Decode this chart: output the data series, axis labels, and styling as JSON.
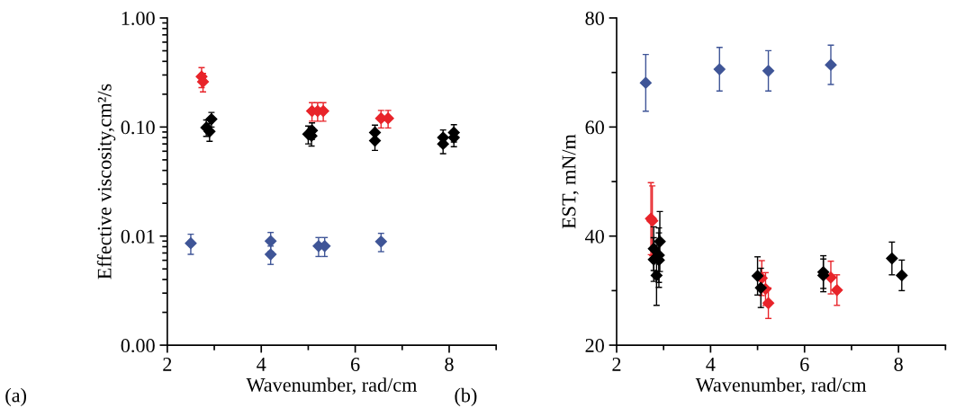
{
  "chart_data": [
    {
      "type": "scatter",
      "xlabel": "Wavenumber, rad/cm",
      "ylabel": "Effective viscosity,cm²/s",
      "annotations": [
        "(a)"
      ],
      "log": "y",
      "xlim": [
        2,
        9
      ],
      "xticks": [
        2,
        4,
        6,
        8
      ],
      "ylim": [
        0.001,
        1
      ],
      "yticks": [
        {
          "value": 0.001,
          "label": "0.00"
        },
        {
          "value": 0.01,
          "label": "0.01"
        },
        {
          "value": 0.1,
          "label": "0.10"
        },
        {
          "value": 1,
          "label": "1.00"
        }
      ],
      "marker": "diamond",
      "series": [
        {
          "color": "#3f5597",
          "x": [
            2.5,
            4.2,
            4.2,
            5.22,
            5.35,
            6.55
          ],
          "values": [
            0.0086,
            0.009,
            0.0068,
            0.0081,
            0.0081,
            0.0089
          ],
          "errors": [
            0.0018,
            0.0018,
            0.0013,
            0.0016,
            0.0016,
            0.0017
          ]
        },
        {
          "color": "#e8242a",
          "x": [
            2.73,
            2.76,
            5.08,
            5.2,
            5.32,
            6.55,
            6.7
          ],
          "values": [
            0.29,
            0.26,
            0.14,
            0.14,
            0.14,
            0.12,
            0.12
          ],
          "errors": [
            0.06,
            0.05,
            0.027,
            0.027,
            0.027,
            0.022,
            0.022
          ]
        },
        {
          "color": "#000000",
          "x": [
            2.83,
            2.9,
            2.94,
            5.0,
            5.07,
            5.08,
            6.42,
            6.42,
            7.87,
            7.87,
            8.1,
            8.1
          ],
          "values": [
            0.099,
            0.091,
            0.118,
            0.086,
            0.083,
            0.093,
            0.089,
            0.075,
            0.08,
            0.07,
            0.089,
            0.08
          ],
          "errors": [
            0.017,
            0.017,
            0.018,
            0.016,
            0.016,
            0.016,
            0.015,
            0.014,
            0.014,
            0.013,
            0.016,
            0.014
          ]
        }
      ]
    },
    {
      "type": "scatter",
      "xlabel": "Wavenumber, rad/cm",
      "ylabel": "EST, mN/m",
      "annotations": [
        "(b)"
      ],
      "xlim": [
        2,
        9
      ],
      "xticks": [
        2,
        4,
        6,
        8
      ],
      "ylim": [
        20,
        80
      ],
      "yticks": [
        20,
        40,
        60,
        80
      ],
      "marker": "diamond",
      "series": [
        {
          "color": "#3f5597",
          "x": [
            2.62,
            4.19,
            5.23,
            6.56
          ],
          "values": [
            68.1,
            70.6,
            70.3,
            71.4
          ],
          "errors": [
            5.2,
            4.0,
            3.7,
            3.6
          ]
        },
        {
          "color": "#e8242a",
          "x": [
            2.73,
            2.76,
            5.09,
            5.17,
            5.23,
            6.56,
            6.69
          ],
          "values": [
            43.2,
            42.8,
            32.3,
            30.3,
            27.7,
            32.4,
            30.1
          ],
          "errors": [
            6.6,
            6.4,
            3.2,
            3.0,
            2.8,
            3.0,
            2.8
          ]
        },
        {
          "color": "#000000",
          "x": [
            2.79,
            2.79,
            2.85,
            2.92,
            2.9,
            2.9,
            5.0,
            5.07,
            6.4,
            6.4,
            7.86,
            8.07
          ],
          "values": [
            37.7,
            35.7,
            32.8,
            39.0,
            36.5,
            35.6,
            32.7,
            30.5,
            33.4,
            32.8,
            35.9,
            32.8
          ],
          "errors": [
            4.0,
            4.0,
            5.5,
            5.5,
            5.0,
            5.0,
            3.5,
            3.6,
            3.0,
            3.0,
            3.0,
            2.8
          ]
        }
      ]
    }
  ]
}
